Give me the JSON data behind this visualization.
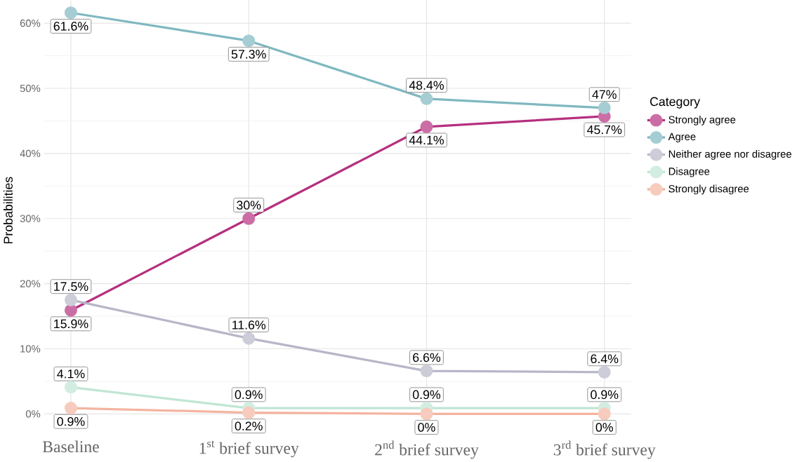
{
  "chart_data": {
    "type": "line",
    "ylabel": "Probabilities",
    "legend_title": "Category",
    "categories": [
      "Baseline",
      "1$^{st}$ brief survey",
      "2$^{nd}$ brief survey",
      "3$^{rd}$ brief survey"
    ],
    "series": [
      {
        "name": "Strongly agree",
        "color": "#b5307f",
        "values": [
          15.9,
          30,
          44.1,
          45.7
        ],
        "value_labels": [
          "15.9%",
          "30%",
          "44.1%",
          "45.7%"
        ]
      },
      {
        "name": "Agree",
        "color": "#7fb8c0",
        "values": [
          61.6,
          57.3,
          48.4,
          47
        ],
        "value_labels": [
          "61.6%",
          "57.3%",
          "48.4%",
          "47%"
        ]
      },
      {
        "name": "Neither agree nor disagree",
        "color": "#b8b6c8",
        "values": [
          17.5,
          11.6,
          6.6,
          6.4
        ],
        "value_labels": [
          "17.5%",
          "11.6%",
          "6.6%",
          "6.4%"
        ]
      },
      {
        "name": "Disagree",
        "color": "#bfe6d4",
        "values": [
          4.1,
          0.9,
          0.9,
          0.9
        ],
        "value_labels": [
          "4.1%",
          "0.9%",
          "0.9%",
          "0.9%"
        ]
      },
      {
        "name": "Strongly disagree",
        "color": "#f4b4a0",
        "values": [
          0.9,
          0.2,
          0,
          0
        ],
        "value_labels": [
          "0.9%",
          "0.2%",
          "0%",
          "0%"
        ]
      }
    ],
    "ylim": [
      -1,
      63.5
    ],
    "yticks": [
      {
        "value": 0,
        "label": "0%"
      },
      {
        "value": 10,
        "label": "10%"
      },
      {
        "value": 20,
        "label": "20%"
      },
      {
        "value": 30,
        "label": "30%"
      },
      {
        "value": 40,
        "label": "40%"
      },
      {
        "value": 50,
        "label": "50%"
      },
      {
        "value": 60,
        "label": "60%"
      }
    ],
    "grid": true,
    "legend": "right",
    "marker": "circle",
    "line_style": "solid"
  }
}
